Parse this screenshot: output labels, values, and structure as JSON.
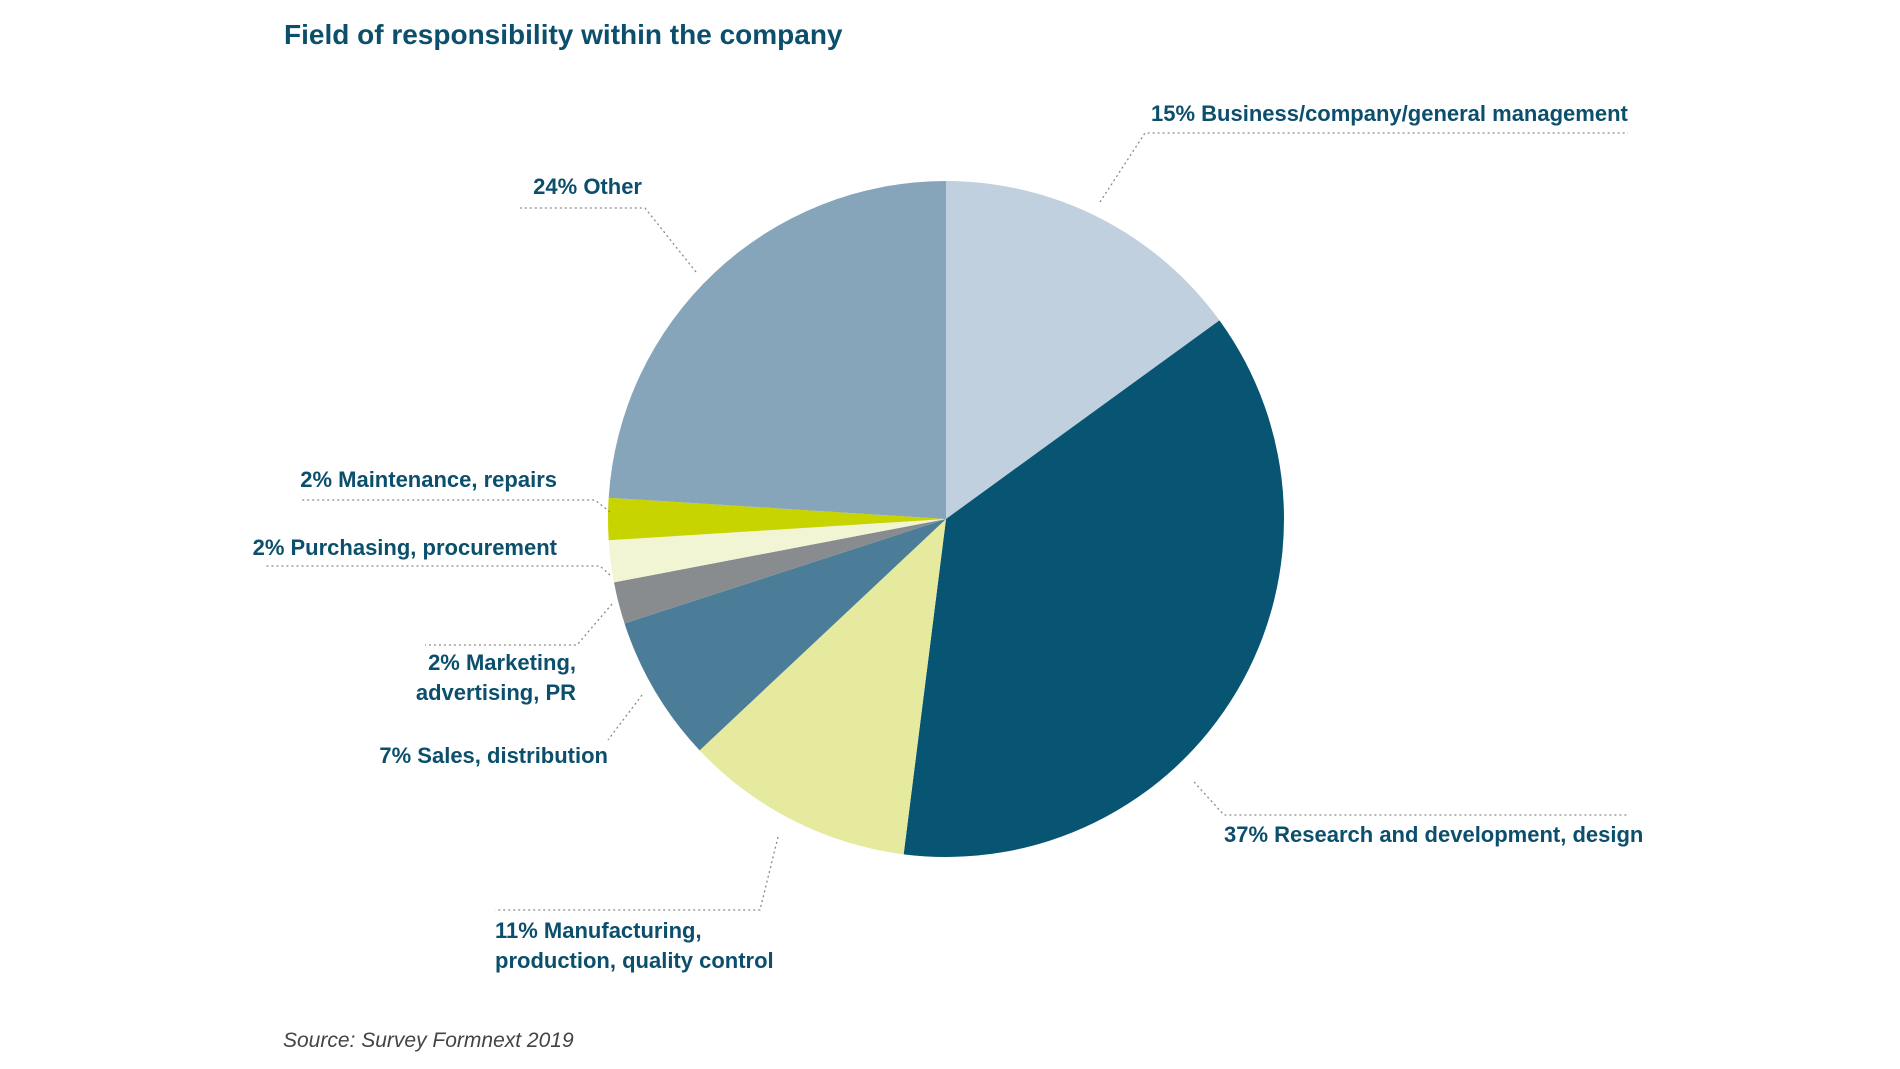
{
  "chart_data": {
    "type": "pie",
    "title": "Field of responsibility within the company",
    "source": "Source: Survey Formnext 2019",
    "slices": [
      {
        "label": "Business/company/general management",
        "value": 15,
        "value_text": "15%",
        "label_lines": [
          "15% Business/company/general management"
        ],
        "color": "#c0d0de"
      },
      {
        "label": "Research and development, design",
        "value": 37,
        "value_text": "37%",
        "label_lines": [
          "37% Research and development, design"
        ],
        "color": "#075572"
      },
      {
        "label": "Manufacturing, production, quality control",
        "value": 11,
        "value_text": "11%",
        "label_lines": [
          "11% Manufacturing,",
          "production, quality control"
        ],
        "color": "#e5ea9e"
      },
      {
        "label": "Sales, distribution",
        "value": 7,
        "value_text": "7%",
        "label_lines": [
          "7% Sales, distribution"
        ],
        "color": "#4b7d98"
      },
      {
        "label": "Marketing, advertising, PR",
        "value": 2,
        "value_text": "2%",
        "label_lines": [
          "2% Marketing,",
          "advertising, PR"
        ],
        "color": "#888c8f"
      },
      {
        "label": "Purchasing, procurement",
        "value": 2,
        "value_text": "2%",
        "label_lines": [
          "2% Purchasing, procurement"
        ],
        "color": "#f1f5d4"
      },
      {
        "label": "Maintenance, repairs",
        "value": 2,
        "value_text": "2%",
        "label_lines": [
          "2% Maintenance, repairs"
        ],
        "color": "#c8d400"
      },
      {
        "label": "Other",
        "value": 24,
        "value_text": "24%",
        "label_lines": [
          "24% Other"
        ],
        "color": "#87a5ba"
      }
    ]
  }
}
